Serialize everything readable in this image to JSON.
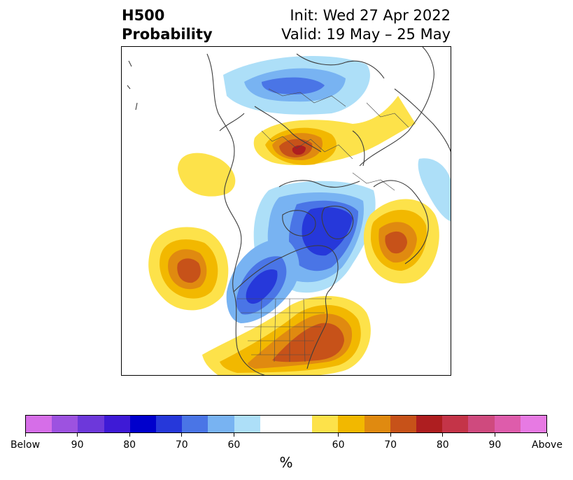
{
  "title": {
    "left_line1": "H500",
    "left_line2": "Probability",
    "right_line1": "Init: Wed 27 Apr 2022",
    "right_line2": "Valid: 19 May – 25 May"
  },
  "colorbar": {
    "colors": [
      "#d66ee8",
      "#9d52e0",
      "#6d38da",
      "#3e1ad6",
      "#0000cc",
      "#2638da",
      "#4a75e6",
      "#78b3f2",
      "#addff8",
      "#ffffff",
      "#ffffff",
      "#fde24a",
      "#f2b800",
      "#e08a10",
      "#c75219",
      "#ae1e20",
      "#c43448",
      "#cf4a7e",
      "#de5cab",
      "#e77ae3"
    ],
    "tick_labels": [
      "Below",
      "90",
      "80",
      "70",
      "60",
      "60",
      "70",
      "80",
      "90",
      "Above"
    ],
    "unit": "%"
  },
  "anomaly_colors": {
    "pos": [
      "#fde24a",
      "#f2b800",
      "#e08a10",
      "#c75219",
      "#ae1e20"
    ],
    "neg": [
      "#addff8",
      "#78b3f2",
      "#4a75e6",
      "#2638da",
      "#0000cc"
    ]
  }
}
